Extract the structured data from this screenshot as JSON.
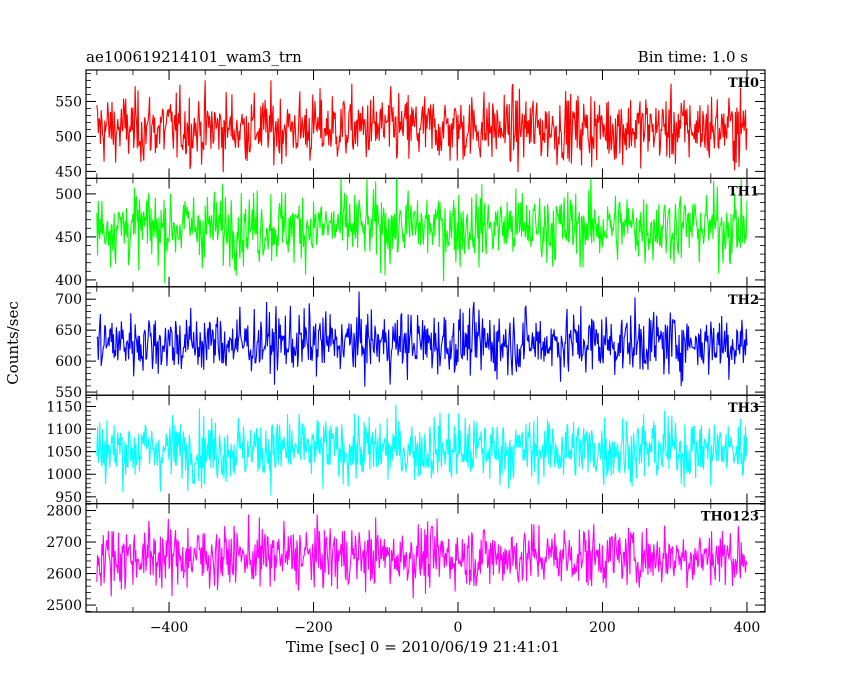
{
  "chart_data": {
    "type": "line",
    "title_left": "ae100619214101_wam3_trn",
    "title_right": "Bin time: 1.0 s",
    "xlabel": "Time [sec] 0 = 2010/06/19 21:41:01",
    "ylabel": "Counts/sec",
    "xlim": [
      -515,
      425
    ],
    "x_ticks": [
      -400,
      -200,
      0,
      200,
      400
    ],
    "x_tick_labels": [
      "−400",
      "−200",
      "0",
      "200",
      "400"
    ],
    "x_range_data": [
      -500,
      400
    ],
    "panels": [
      {
        "name": "TH0",
        "color": "#ff0000",
        "ylim": [
          440,
          595
        ],
        "y_ticks": [
          450,
          500,
          550
        ],
        "y_tick_labels": [
          "450",
          "500",
          "550"
        ],
        "mean": 512,
        "spread": 26,
        "min": 440,
        "max": 600
      },
      {
        "name": "TH1",
        "color": "#00ff00",
        "ylim": [
          392,
          518
        ],
        "y_ticks": [
          400,
          450,
          500
        ],
        "y_tick_labels": [
          "400",
          "450",
          "500"
        ],
        "mean": 462,
        "spread": 22,
        "min": 395,
        "max": 525
      },
      {
        "name": "TH2",
        "color": "#0000ff",
        "ylim": [
          545,
          720
        ],
        "y_ticks": [
          550,
          600,
          650,
          700
        ],
        "y_tick_labels": [
          "550",
          "600",
          "650",
          "700"
        ],
        "mean": 630,
        "spread": 27,
        "min": 545,
        "max": 725
      },
      {
        "name": "TH3",
        "color": "#00ffff",
        "ylim": [
          935,
          1175
        ],
        "y_ticks": [
          950,
          1000,
          1050,
          1100,
          1150
        ],
        "y_tick_labels": [
          "950",
          "1000",
          "1050",
          "1100",
          "1150"
        ],
        "mean": 1055,
        "spread": 38,
        "min": 935,
        "max": 1175
      },
      {
        "name": "TH0123",
        "color": "#ff00ff",
        "ylim": [
          2478,
          2822
        ],
        "y_ticks": [
          2500,
          2600,
          2700,
          2800
        ],
        "y_tick_labels": [
          "2500",
          "2600",
          "2700",
          "2800"
        ],
        "mean": 2655,
        "spread": 52,
        "min": 2480,
        "max": 2820
      }
    ]
  }
}
